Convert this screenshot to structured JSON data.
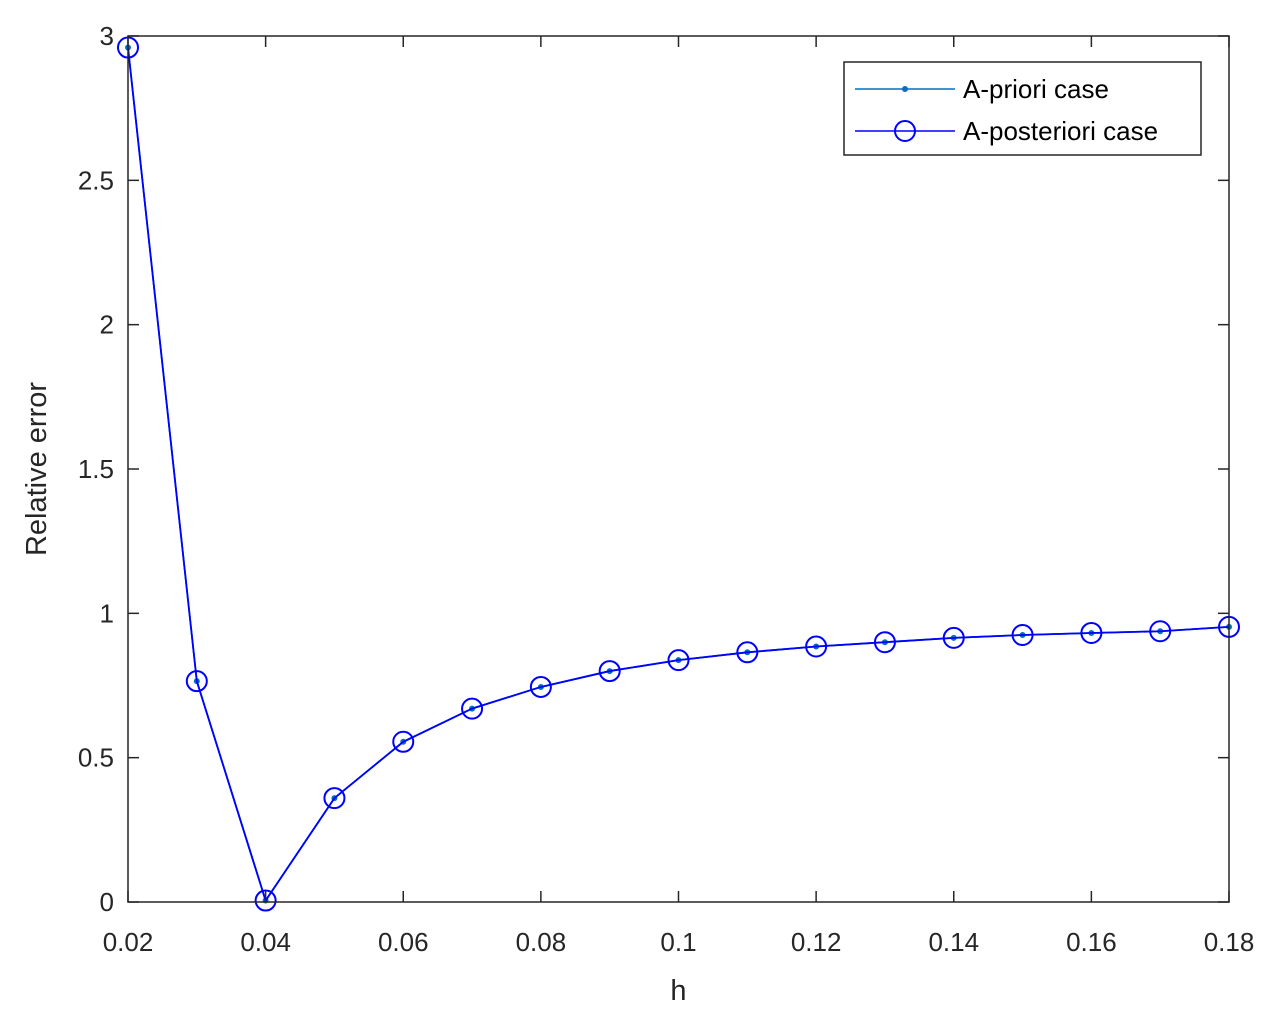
{
  "chart_data": {
    "type": "line",
    "xlabel": "h",
    "ylabel": "Relative error",
    "xlim": [
      0.02,
      0.18
    ],
    "ylim": [
      0,
      3
    ],
    "x_ticks": [
      0.02,
      0.04,
      0.06,
      0.08,
      0.1,
      0.12,
      0.14,
      0.16,
      0.18
    ],
    "x_tick_labels": [
      "0.02",
      "0.04",
      "0.06",
      "0.08",
      "0.1",
      "0.12",
      "0.14",
      "0.16",
      "0.18"
    ],
    "y_ticks": [
      0,
      0.5,
      1,
      1.5,
      2,
      2.5,
      3
    ],
    "y_tick_labels": [
      "0",
      "0.5",
      "1",
      "1.5",
      "2",
      "2.5",
      "3"
    ],
    "grid": false,
    "legend_position": "top-right",
    "x": [
      0.02,
      0.03,
      0.04,
      0.05,
      0.06,
      0.07,
      0.08,
      0.09,
      0.1,
      0.11,
      0.12,
      0.13,
      0.14,
      0.15,
      0.16,
      0.17,
      0.18
    ],
    "series": [
      {
        "name": "A-priori case",
        "color": "#0072BD",
        "marker": "dot",
        "values": [
          2.96,
          0.765,
          0.005,
          0.36,
          0.555,
          0.67,
          0.745,
          0.8,
          0.838,
          0.865,
          0.885,
          0.9,
          0.915,
          0.925,
          0.932,
          0.938,
          0.953
        ]
      },
      {
        "name": "A-posteriori case",
        "color": "#0000FF",
        "marker": "circle",
        "values": [
          2.96,
          0.765,
          0.005,
          0.36,
          0.555,
          0.67,
          0.745,
          0.8,
          0.838,
          0.865,
          0.885,
          0.9,
          0.915,
          0.925,
          0.932,
          0.938,
          0.953
        ]
      }
    ]
  }
}
